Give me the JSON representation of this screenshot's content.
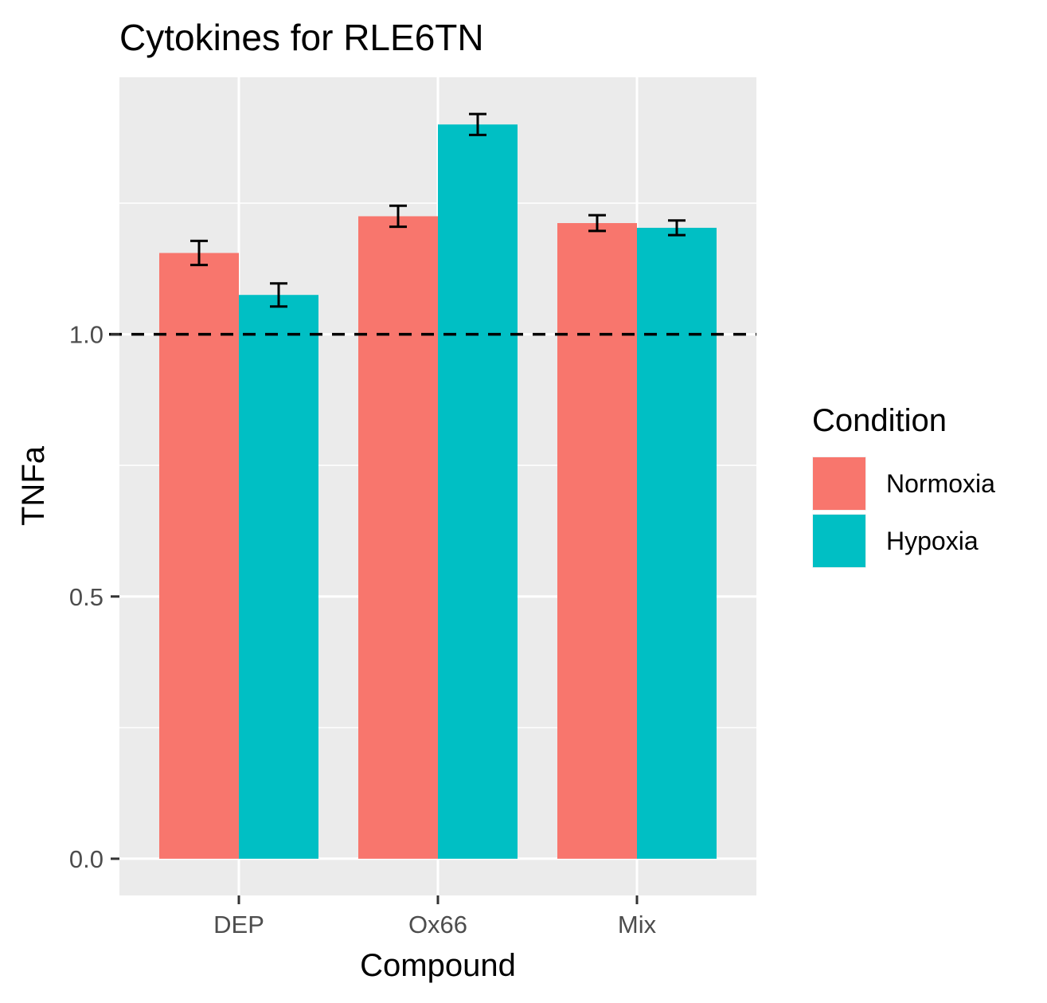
{
  "chart_data": {
    "type": "bar",
    "title": "Cytokines for RLE6TN",
    "xlabel": "Compound",
    "ylabel": "TNFa",
    "categories": [
      "DEP",
      "Ox66",
      "Mix"
    ],
    "series": [
      {
        "name": "Normoxia",
        "color": "#F8766D",
        "values": [
          1.155,
          1.225,
          1.212
        ],
        "error": [
          0.023,
          0.02,
          0.015
        ]
      },
      {
        "name": "Hypoxia",
        "color": "#00BFC4",
        "values": [
          1.075,
          1.4,
          1.203
        ],
        "error": [
          0.022,
          0.02,
          0.014
        ]
      }
    ],
    "yticks": [
      "0.0",
      "0.5",
      "1.0"
    ],
    "ylim": [
      -0.07,
      1.49
    ],
    "reference_line": {
      "y": 1.0,
      "style": "dashed",
      "color": "#000000"
    },
    "legend": {
      "title": "Condition",
      "position": "right"
    },
    "grid": true,
    "panel_background": "#EBEBEB"
  }
}
